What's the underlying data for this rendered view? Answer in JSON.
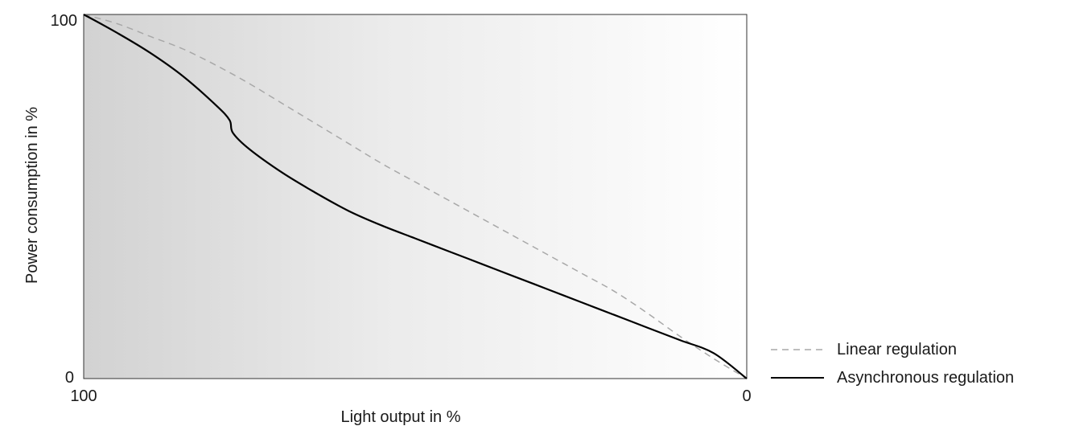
{
  "chart_data": {
    "type": "line",
    "xlabel": "Light output in %",
    "ylabel": "Power consumption in %",
    "x_ticks": [
      "100",
      "0"
    ],
    "y_ticks": [
      "100",
      "0"
    ],
    "xlim": [
      100,
      0
    ],
    "ylim": [
      0,
      100
    ],
    "x_reversed": true,
    "grid": false,
    "background": "gradient dark-to-light, left to right",
    "legend_position": "bottom-right, outside plot",
    "series": [
      {
        "name": "Linear regulation",
        "style": "dashed",
        "color": "#a8a8a8",
        "x": [
          100,
          95,
          90,
          85,
          80,
          75,
          70,
          65,
          60,
          55,
          50,
          45,
          40,
          35,
          30,
          25,
          20,
          15,
          10,
          5,
          0
        ],
        "y": [
          100,
          97.5,
          94,
          90.5,
          86,
          81,
          75.5,
          70,
          64.5,
          59,
          54,
          49,
          44,
          39,
          34,
          29,
          24,
          18,
          11.5,
          5.5,
          0
        ]
      },
      {
        "name": "Asynchronous regulation",
        "style": "solid",
        "color": "#000000",
        "x": [
          100,
          95,
          90,
          85,
          80,
          78,
          77.5,
          75,
          70,
          65,
          60,
          55,
          50,
          45,
          40,
          35,
          30,
          25,
          20,
          15,
          10,
          5,
          0
        ],
        "y": [
          100,
          95,
          89.5,
          83,
          75,
          71,
          67.5,
          63,
          56.5,
          51,
          46,
          42,
          38.5,
          35,
          31.5,
          28,
          24.5,
          21,
          17.5,
          14,
          10.5,
          7,
          0
        ]
      }
    ]
  }
}
